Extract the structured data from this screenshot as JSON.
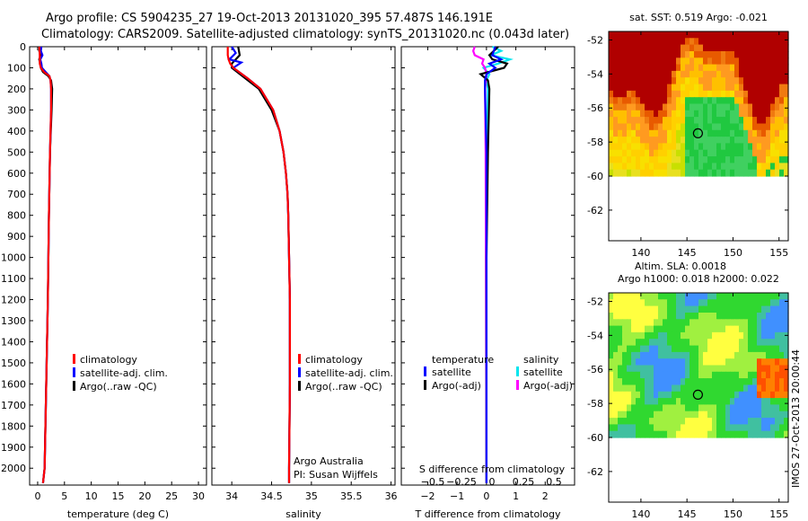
{
  "header": {
    "line1": "Argo profile: CS 5904235_27 19-Oct-2013 20131020_395 57.487S 146.191E",
    "line2": "Climatology: CARS2009. Satellite-adjusted climatology: synTS_20131020.nc (0.043d later)"
  },
  "colors": {
    "climatology": "#ff0000",
    "satellite": "#0000ff",
    "argo": "#000000",
    "satellite_diff_s": "#00e5ee",
    "argo_diff_s": "#ff00ff"
  },
  "depth_ticks": [
    0,
    100,
    200,
    300,
    400,
    500,
    600,
    700,
    800,
    900,
    1000,
    1100,
    1200,
    1300,
    1400,
    1500,
    1600,
    1700,
    1800,
    1900,
    2000
  ],
  "chart_data": [
    {
      "id": "temperature",
      "type": "line",
      "xlabel": "temperature (deg C)",
      "xticks": [
        0,
        5,
        10,
        15,
        20,
        25,
        30
      ],
      "xlim": [
        -1.5,
        31.5
      ],
      "ylim": [
        0,
        2080
      ],
      "legend": [
        "climatology",
        "satellite-adj. clim.",
        "Argo(..raw -QC)"
      ],
      "series": [
        {
          "name": "climatology",
          "depth": [
            0,
            40,
            80,
            100,
            120,
            140,
            160,
            200,
            300,
            500,
            800,
            1200,
            1600,
            2000,
            2070
          ],
          "values": [
            0.3,
            0.4,
            0.4,
            0.6,
            1.2,
            2.2,
            2.4,
            2.5,
            2.5,
            2.3,
            2.1,
            1.9,
            1.6,
            1.3,
            1.0
          ]
        },
        {
          "name": "satellite-adj. clim.",
          "depth": [
            0,
            20,
            40,
            60,
            80,
            100,
            120,
            140,
            160,
            200,
            300,
            500,
            800,
            1200,
            1600,
            2000,
            2070
          ],
          "values": [
            0.7,
            0.6,
            0.9,
            0.5,
            0.7,
            0.8,
            1.5,
            2.2,
            2.4,
            2.5,
            2.5,
            2.3,
            2.1,
            1.9,
            1.6,
            1.3,
            1.0
          ]
        },
        {
          "name": "Argo(..raw -QC)",
          "depth": [
            0,
            20,
            40,
            60,
            80,
            100,
            120,
            140,
            160,
            200,
            300,
            500,
            800,
            1200,
            1600,
            2000,
            2070
          ],
          "values": [
            0.5,
            0.3,
            0.6,
            0.3,
            0.5,
            0.6,
            1.0,
            2.0,
            2.5,
            2.7,
            2.6,
            2.3,
            2.1,
            1.9,
            1.6,
            1.3,
            1.0
          ]
        }
      ],
      "annotations": []
    },
    {
      "id": "salinity",
      "type": "line",
      "xlabel": "salinity",
      "xticks": [
        34,
        34.5,
        35,
        35.5,
        36
      ],
      "xlim": [
        33.75,
        36.05
      ],
      "ylim": [
        0,
        2080
      ],
      "legend": [
        "climatology",
        "satellite-adj. clim.",
        "Argo(..raw -QC)"
      ],
      "series": [
        {
          "name": "climatology",
          "depth": [
            0,
            20,
            40,
            60,
            80,
            100,
            150,
            200,
            300,
            400,
            500,
            600,
            700,
            800,
            1000,
            1200,
            1600,
            2000,
            2070
          ],
          "values": [
            33.95,
            33.95,
            33.95,
            33.96,
            33.98,
            34.02,
            34.2,
            34.36,
            34.52,
            34.6,
            34.65,
            34.68,
            34.7,
            34.71,
            34.72,
            34.73,
            34.73,
            34.72,
            34.72
          ]
        },
        {
          "name": "satellite-adj. clim.",
          "depth": [
            0,
            30,
            60,
            75,
            100,
            150,
            200,
            300,
            400,
            500,
            600,
            700,
            800,
            1000,
            1200,
            1600,
            2000,
            2070
          ],
          "values": [
            34.0,
            34.05,
            33.97,
            34.12,
            34.02,
            34.2,
            34.36,
            34.52,
            34.6,
            34.65,
            34.68,
            34.7,
            34.71,
            34.72,
            34.73,
            34.73,
            34.72,
            34.72
          ]
        },
        {
          "name": "Argo(..raw -QC)",
          "depth": [
            0,
            40,
            60,
            80,
            100,
            150,
            200,
            300,
            400,
            500,
            600,
            700,
            800,
            1000,
            1200,
            1600,
            2000,
            2070
          ],
          "values": [
            34.08,
            34.1,
            34.05,
            34.0,
            34.0,
            34.17,
            34.34,
            34.5,
            34.6,
            34.65,
            34.68,
            34.7,
            34.71,
            34.72,
            34.73,
            34.73,
            34.72,
            34.72
          ]
        }
      ],
      "annotations": [
        "Argo Australia",
        "PI: Susan Wijffels"
      ]
    },
    {
      "id": "differences",
      "type": "line",
      "xlabel": "T difference from climatology",
      "xlabel_top": "S difference from climatology",
      "xticks": [
        -2,
        -1,
        0,
        1,
        2
      ],
      "xtick_labels": [
        "−2",
        "−1",
        "0",
        "1",
        "2"
      ],
      "xticks_s": [
        "−0.5",
        "−0.25",
        "0",
        "0.25",
        "0.5"
      ],
      "xlim": [
        -2.9,
        3.0
      ],
      "ylim": [
        0,
        2080
      ],
      "legend_headers": [
        "temperature",
        "salinity"
      ],
      "legend_temperature": [
        "satellite",
        "Argo(-adj)"
      ],
      "legend_salinity": [
        "satellite",
        "Argo(-adj)"
      ],
      "series": [
        {
          "name": "temperature satellite",
          "depth": [
            0,
            40,
            60,
            80,
            100,
            130,
            160,
            200,
            500,
            1000,
            2070
          ],
          "values": [
            0.3,
            0.2,
            0.5,
            0.1,
            0.3,
            0.0,
            -0.05,
            -0.05,
            0.0,
            0.0,
            0.0
          ]
        },
        {
          "name": "temperature Argo(-adj)",
          "depth": [
            0,
            40,
            60,
            80,
            100,
            130,
            160,
            200,
            500,
            1000,
            2070
          ],
          "values": [
            0.4,
            0.1,
            0.2,
            0.7,
            0.6,
            -0.2,
            0.05,
            0.1,
            0.05,
            0.0,
            0.0
          ]
        },
        {
          "name": "salinity satellite",
          "depth": [
            0,
            20,
            40,
            60,
            80,
            100,
            130,
            160,
            200,
            500,
            1000,
            2070
          ],
          "values": [
            0.2,
            0.5,
            0.15,
            0.8,
            0.4,
            -0.1,
            0.1,
            0.0,
            0.05,
            0.02,
            0.0,
            0.0
          ]
        },
        {
          "name": "salinity Argo(-adj)",
          "depth": [
            0,
            20,
            40,
            60,
            80,
            100,
            130,
            160,
            200,
            500,
            1000,
            2070
          ],
          "values": [
            -0.4,
            -0.45,
            -0.4,
            -0.1,
            -0.15,
            -0.05,
            0.0,
            -0.02,
            -0.05,
            -0.03,
            -0.02,
            0.0
          ]
        }
      ]
    },
    {
      "id": "sst_map",
      "type": "heatmap",
      "title": "sat. SST: 0.519 Argo: -0.021",
      "xticks": [
        140,
        145,
        150,
        155
      ],
      "yticks": [
        "-52",
        "-54",
        "-56",
        "-58",
        "-60",
        "-62"
      ],
      "xlim": [
        136.5,
        156
      ],
      "ylim": [
        -63.8,
        -51.5
      ],
      "data_lat_min": -60,
      "argo_position": {
        "lon": 146.191,
        "lat": -57.487
      }
    },
    {
      "id": "sla_map",
      "type": "heatmap",
      "title_line1": "Altim. SLA: 0.0018",
      "title_line2": "Argo h1000: 0.018 h2000: 0.022",
      "xticks": [
        140,
        145,
        150,
        155
      ],
      "yticks": [
        "-52",
        "-54",
        "-56",
        "-58",
        "-60",
        "-62"
      ],
      "xlim": [
        136.5,
        156
      ],
      "ylim": [
        -63.8,
        -51.5
      ],
      "data_lat_min": -60,
      "argo_position": {
        "lon": 146.191,
        "lat": -57.487
      }
    }
  ],
  "footer_stamp": "IMOS 27-Oct-2013 20:00:44"
}
